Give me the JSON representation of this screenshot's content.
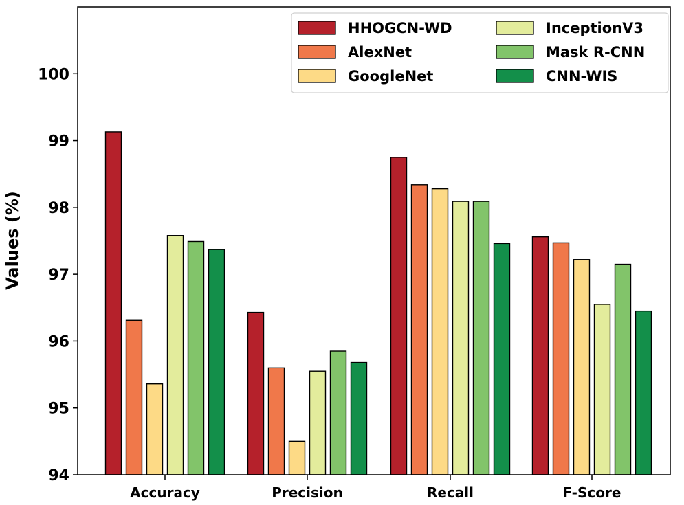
{
  "chart_data": {
    "type": "bar",
    "title": "",
    "xlabel": "",
    "ylabel": "Values (%)",
    "ylim": [
      94,
      101
    ],
    "yticks": [
      94,
      95,
      96,
      97,
      98,
      99,
      100
    ],
    "grid": false,
    "legend_position": "top-right",
    "categories": [
      "Accuracy",
      "Precision",
      "Recall",
      "F-Score"
    ],
    "series": [
      {
        "name": "HHOGCN-WD",
        "color": "#b5212b",
        "values": [
          99.13,
          96.43,
          98.75,
          97.56
        ]
      },
      {
        "name": "AlexNet",
        "color": "#f0784a",
        "values": [
          96.31,
          95.6,
          98.34,
          97.47
        ]
      },
      {
        "name": "GoogleNet",
        "color": "#fdda86",
        "values": [
          95.36,
          94.5,
          98.28,
          97.22
        ]
      },
      {
        "name": "InceptionV3",
        "color": "#e3ec9c",
        "values": [
          97.58,
          95.55,
          98.09,
          96.55
        ]
      },
      {
        "name": "Mask R-CNN",
        "color": "#82c46a",
        "values": [
          97.49,
          95.85,
          98.09,
          97.15
        ]
      },
      {
        "name": "CNN-WIS",
        "color": "#138f4a",
        "values": [
          97.37,
          95.68,
          97.46,
          96.45
        ]
      }
    ]
  }
}
